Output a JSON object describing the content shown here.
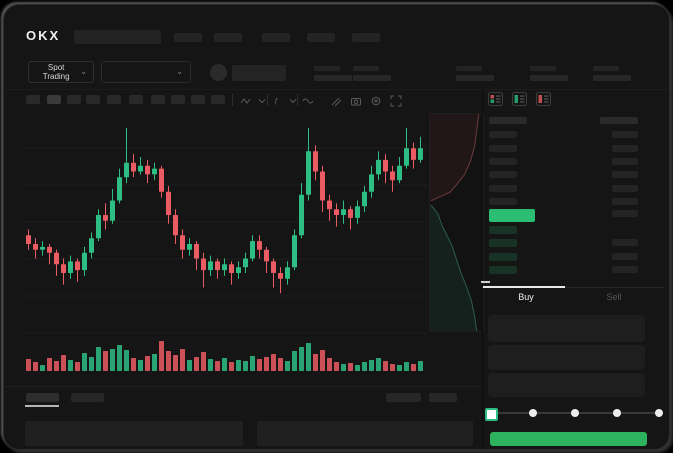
{
  "topbar": {
    "logo_text": "OKX",
    "nav_slot_count": 5
  },
  "subheader": {
    "market_selector_label": "Spot Trading",
    "chevron": "⌄",
    "stat_pair_count": 5
  },
  "toolbar": {
    "interval_slot_count": 10,
    "active_slot_index": 1,
    "icons": [
      "zigzag-icon",
      "chevron-down-icon",
      "function-icon",
      "chevron-down-icon",
      "wave-icon",
      "draw-tools-icon",
      "camera-icon",
      "settings-icon",
      "fullscreen-icon"
    ]
  },
  "orderbook": {
    "view_mode_icons": [
      "book-all-icon",
      "book-bids-icon",
      "book-asks-icon"
    ],
    "ask_row_count": 6,
    "bid_row_count": 4,
    "has_price_bar": true
  },
  "trade_panel": {
    "buy_tab_label": "Buy",
    "sell_tab_label": "Sell",
    "active_tab": "Buy",
    "input_row_count": 3,
    "amount_slider_steps": 5,
    "amount_slider_active_step": 0,
    "submit_button_label": ""
  },
  "colors": {
    "up_green": "#2EBD85",
    "down_red": "#EB5B63",
    "price_bar_green": "#2BBD72",
    "buy_button_green": "#2DB25D",
    "bid_row_tint": "#183325",
    "skeleton": "#262626",
    "skeleton_active": "#3a3a3a"
  },
  "chart_data": {
    "type": "candlestick",
    "title": "",
    "price_scale": {
      "min": 30,
      "max": 95
    },
    "grid": true,
    "candles": [
      [
        56,
        53,
        51,
        58
      ],
      [
        53,
        51,
        48,
        55
      ],
      [
        51,
        52,
        49,
        54
      ],
      [
        52,
        50,
        46,
        53
      ],
      [
        50,
        46,
        42,
        51
      ],
      [
        46,
        43,
        39,
        48
      ],
      [
        43,
        47,
        41,
        49
      ],
      [
        47,
        44,
        40,
        48
      ],
      [
        44,
        50,
        42,
        52
      ],
      [
        50,
        55,
        48,
        57
      ],
      [
        55,
        63,
        54,
        65
      ],
      [
        63,
        61,
        58,
        67
      ],
      [
        61,
        68,
        60,
        72
      ],
      [
        68,
        76,
        67,
        79
      ],
      [
        76,
        81,
        74,
        93
      ],
      [
        81,
        78,
        76,
        84
      ],
      [
        78,
        80,
        77,
        83
      ],
      [
        80,
        77,
        74,
        82
      ],
      [
        77,
        79,
        75,
        81
      ],
      [
        79,
        71,
        69,
        80
      ],
      [
        71,
        63,
        60,
        73
      ],
      [
        63,
        56,
        53,
        65
      ],
      [
        56,
        51,
        48,
        58
      ],
      [
        51,
        53,
        49,
        55
      ],
      [
        53,
        48,
        44,
        54
      ],
      [
        48,
        44,
        38,
        50
      ],
      [
        44,
        47,
        42,
        49
      ],
      [
        47,
        44,
        41,
        48
      ],
      [
        44,
        46,
        42,
        48
      ],
      [
        46,
        43,
        39,
        47
      ],
      [
        43,
        45,
        41,
        47
      ],
      [
        45,
        48,
        43,
        50
      ],
      [
        48,
        54,
        47,
        56
      ],
      [
        54,
        51,
        48,
        56
      ],
      [
        51,
        47,
        43,
        52
      ],
      [
        47,
        43,
        38,
        48
      ],
      [
        43,
        41,
        36,
        45
      ],
      [
        41,
        45,
        39,
        47
      ],
      [
        45,
        56,
        44,
        58
      ],
      [
        56,
        70,
        55,
        74
      ],
      [
        70,
        85,
        68,
        93
      ],
      [
        85,
        78,
        75,
        87
      ],
      [
        78,
        68,
        64,
        80
      ],
      [
        68,
        65,
        61,
        70
      ],
      [
        65,
        63,
        59,
        67
      ],
      [
        63,
        65,
        60,
        68
      ],
      [
        65,
        62,
        58,
        66
      ],
      [
        62,
        66,
        60,
        68
      ],
      [
        66,
        71,
        64,
        73
      ],
      [
        71,
        77,
        69,
        80
      ],
      [
        77,
        82,
        75,
        85
      ],
      [
        82,
        78,
        74,
        84
      ],
      [
        78,
        75,
        71,
        80
      ],
      [
        75,
        80,
        74,
        83
      ],
      [
        80,
        86,
        79,
        93
      ],
      [
        86,
        82,
        79,
        88
      ],
      [
        82,
        86,
        81,
        90
      ]
    ],
    "volume": [
      12,
      9,
      6,
      13,
      10,
      16,
      11,
      9,
      18,
      14,
      24,
      20,
      22,
      26,
      21,
      13,
      11,
      15,
      17,
      30,
      20,
      16,
      22,
      11,
      14,
      19,
      12,
      10,
      13,
      9,
      11,
      10,
      15,
      12,
      14,
      17,
      13,
      10,
      20,
      24,
      28,
      17,
      21,
      13,
      9,
      7,
      8,
      6,
      9,
      11,
      13,
      10,
      7,
      6,
      9,
      7,
      10
    ],
    "depth": {
      "asks": [
        [
          0.92,
          0
        ],
        [
          0.88,
          0.08
        ],
        [
          0.84,
          0.15
        ],
        [
          0.76,
          0.22
        ],
        [
          0.65,
          0.28
        ],
        [
          0.52,
          0.32
        ],
        [
          0.38,
          0.36
        ],
        [
          0.2,
          0.38
        ],
        [
          0.02,
          0.4
        ]
      ],
      "bids": [
        [
          0.02,
          0.42
        ],
        [
          0.15,
          0.46
        ],
        [
          0.22,
          0.51
        ],
        [
          0.32,
          0.56
        ],
        [
          0.42,
          0.61
        ],
        [
          0.5,
          0.67
        ],
        [
          0.58,
          0.73
        ],
        [
          0.68,
          0.79
        ],
        [
          0.78,
          0.86
        ],
        [
          0.84,
          0.93
        ],
        [
          0.88,
          1.0
        ]
      ]
    }
  }
}
